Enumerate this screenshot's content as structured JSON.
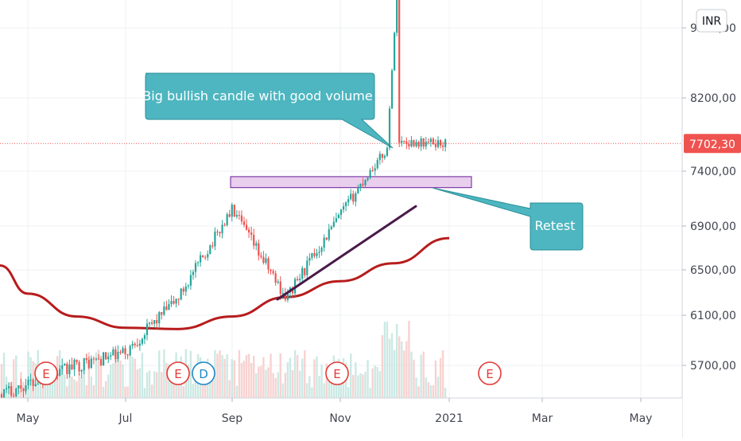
{
  "toolbar": {
    "currency_label": "INR"
  },
  "colors": {
    "up": "#26a69a",
    "down": "#ef5350",
    "ma": "#b71c1c",
    "trendline": "#4a1a4a",
    "zone_fill": "#e1bee7",
    "zone_stroke": "#6a1b9a",
    "callout": "#4db6c0",
    "last_price": "#ef5350",
    "grid": "#eef0f3"
  },
  "chart_data": {
    "type": "candlestick",
    "title": "",
    "xlabel": "",
    "ylabel": "",
    "ylim": [
      5450,
      9250
    ],
    "y_ticks": [
      "9000,00",
      "8200,00",
      "7400,00",
      "6900,00",
      "6500,00",
      "6100,00",
      "5700,00"
    ],
    "x_ticks": [
      "May",
      "Jul",
      "Sep",
      "Nov",
      "2021",
      "Mar",
      "May"
    ],
    "last_price": {
      "value": 7702.3,
      "label": "7702,30"
    },
    "moving_average": {
      "x": [
        "Apr",
        "May",
        "Jun",
        "Jul",
        "Aug",
        "Sep",
        "Oct",
        "Nov",
        "Dec",
        "Jan"
      ],
      "values": [
        6540,
        6290,
        6090,
        6000,
        5990,
        6090,
        6260,
        6400,
        6560,
        6790
      ]
    },
    "price_path": {
      "x": [
        "May",
        "Jun",
        "Jul",
        "Aug",
        "Sep",
        "Oct",
        "Nov",
        "Dec",
        "Jan"
      ],
      "values": [
        5550,
        5700,
        5800,
        6250,
        7050,
        6250,
        7000,
        7720,
        7702
      ]
    },
    "resistance_zone": {
      "low": 7250,
      "high": 7350
    },
    "trendline": {
      "from": 6240,
      "to": 7080
    },
    "annotations": [
      {
        "text": "Big bullish candle with good volume"
      },
      {
        "text": "Retest"
      }
    ],
    "event_markers": [
      "E",
      "E",
      "D",
      "E",
      "E"
    ]
  }
}
